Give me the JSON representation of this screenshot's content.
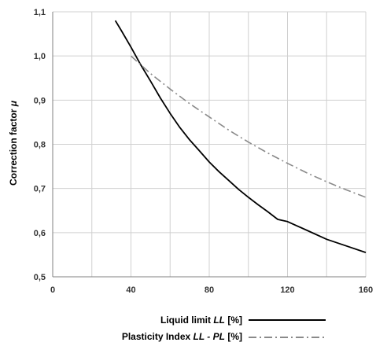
{
  "chart_data": {
    "type": "line",
    "ylabel": "Correction factor",
    "ylabel_symbol": "μ",
    "xlim": [
      0,
      160
    ],
    "ylim": [
      0.5,
      1.1
    ],
    "x_ticks": [
      0,
      40,
      80,
      120,
      160
    ],
    "y_ticks": [
      0.5,
      0.6,
      0.7,
      0.8,
      0.9,
      1.0,
      1.1
    ],
    "y_tick_labels": [
      "0,5",
      "0,6",
      "0,7",
      "0,8",
      "0,9",
      "1,0",
      "1,1"
    ],
    "grid": true,
    "legend_position": "bottom",
    "series": [
      {
        "name": "Liquid limit  LL [%]",
        "legend_label": "Liquid limit",
        "legend_symbol": "LL",
        "legend_unit": "[%]",
        "color": "#000000",
        "style": "solid",
        "x": [
          32,
          35,
          40,
          45,
          50,
          55,
          60,
          65,
          70,
          75,
          80,
          85,
          90,
          95,
          100,
          105,
          110,
          115,
          120,
          130,
          140,
          150,
          160
        ],
        "y": [
          1.08,
          1.058,
          1.02,
          0.98,
          0.943,
          0.905,
          0.87,
          0.838,
          0.81,
          0.785,
          0.76,
          0.738,
          0.718,
          0.698,
          0.68,
          0.663,
          0.647,
          0.63,
          0.625,
          0.605,
          0.585,
          0.57,
          0.555
        ]
      },
      {
        "name": "Plasticity Index  LL - PL [%]",
        "legend_label": "Plasticity Index",
        "legend_symbol": "LL - PL",
        "legend_unit": "[%]",
        "color": "#8a8a8a",
        "style": "dashdot",
        "x": [
          40,
          50,
          60,
          70,
          80,
          90,
          100,
          110,
          120,
          130,
          140,
          150,
          160
        ],
        "y": [
          1.0,
          0.96,
          0.925,
          0.892,
          0.862,
          0.832,
          0.805,
          0.78,
          0.757,
          0.735,
          0.715,
          0.697,
          0.68
        ]
      }
    ]
  }
}
